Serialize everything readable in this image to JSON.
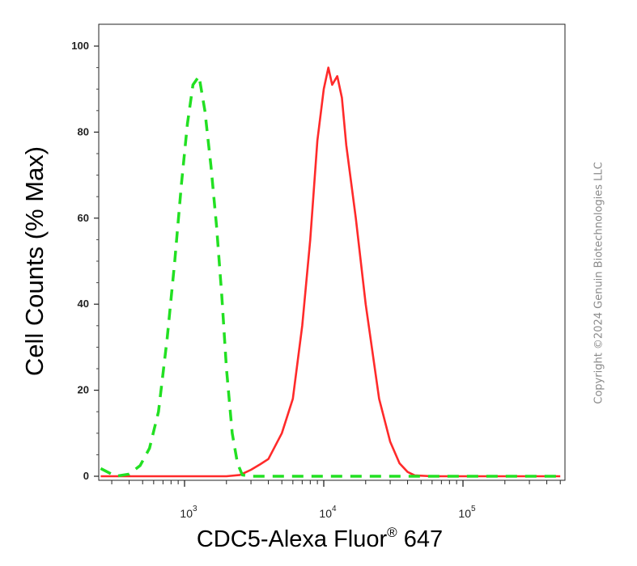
{
  "chart_data": {
    "type": "line",
    "xlabel": "CDC5-Alexa Fluor",
    "xlabel_sup": "®",
    "xlabel_suffix": " 647",
    "ylabel": "Cell Counts (% Max)",
    "xscale": "log",
    "xlim": [
      250,
      500000
    ],
    "ylim": [
      0,
      100
    ],
    "yticks": [
      0,
      20,
      40,
      60,
      80,
      100
    ],
    "xticks": [
      {
        "value": 1000,
        "base": "10",
        "exp": "3"
      },
      {
        "value": 10000,
        "base": "10",
        "exp": "4"
      },
      {
        "value": 100000,
        "base": "10",
        "exp": "5"
      }
    ],
    "series": [
      {
        "color": "#ff2a2a",
        "style": "solid",
        "points": [
          [
            250,
            0
          ],
          [
            1500,
            0
          ],
          [
            2000,
            0
          ],
          [
            2500,
            0.3
          ],
          [
            3000,
            1.5
          ],
          [
            3500,
            2.8
          ],
          [
            4000,
            4
          ],
          [
            5000,
            10
          ],
          [
            6000,
            18
          ],
          [
            7000,
            35
          ],
          [
            8000,
            55
          ],
          [
            9000,
            78
          ],
          [
            10000,
            90
          ],
          [
            10800,
            95
          ],
          [
            11500,
            91
          ],
          [
            12500,
            93
          ],
          [
            13500,
            88
          ],
          [
            14500,
            77
          ],
          [
            17000,
            60
          ],
          [
            20000,
            40
          ],
          [
            25000,
            18
          ],
          [
            30000,
            8
          ],
          [
            35000,
            3
          ],
          [
            40000,
            1
          ],
          [
            45000,
            0.2
          ],
          [
            60000,
            0
          ],
          [
            500000,
            0
          ]
        ]
      },
      {
        "color": "#22e022",
        "style": "dashed",
        "points": [
          [
            250,
            1.8
          ],
          [
            320,
            0
          ],
          [
            400,
            0.5
          ],
          [
            480,
            2.5
          ],
          [
            560,
            6.5
          ],
          [
            650,
            15
          ],
          [
            750,
            32
          ],
          [
            850,
            50
          ],
          [
            950,
            68
          ],
          [
            1050,
            82
          ],
          [
            1150,
            91
          ],
          [
            1270,
            93
          ],
          [
            1400,
            85
          ],
          [
            1550,
            72
          ],
          [
            1700,
            58
          ],
          [
            1850,
            42
          ],
          [
            2000,
            25
          ],
          [
            2200,
            10
          ],
          [
            2400,
            3
          ],
          [
            2600,
            0.3
          ],
          [
            3000,
            0
          ],
          [
            500000,
            0
          ]
        ]
      }
    ]
  },
  "watermark": "Copyright ©2024 Genuin Biotechnologies LLC"
}
